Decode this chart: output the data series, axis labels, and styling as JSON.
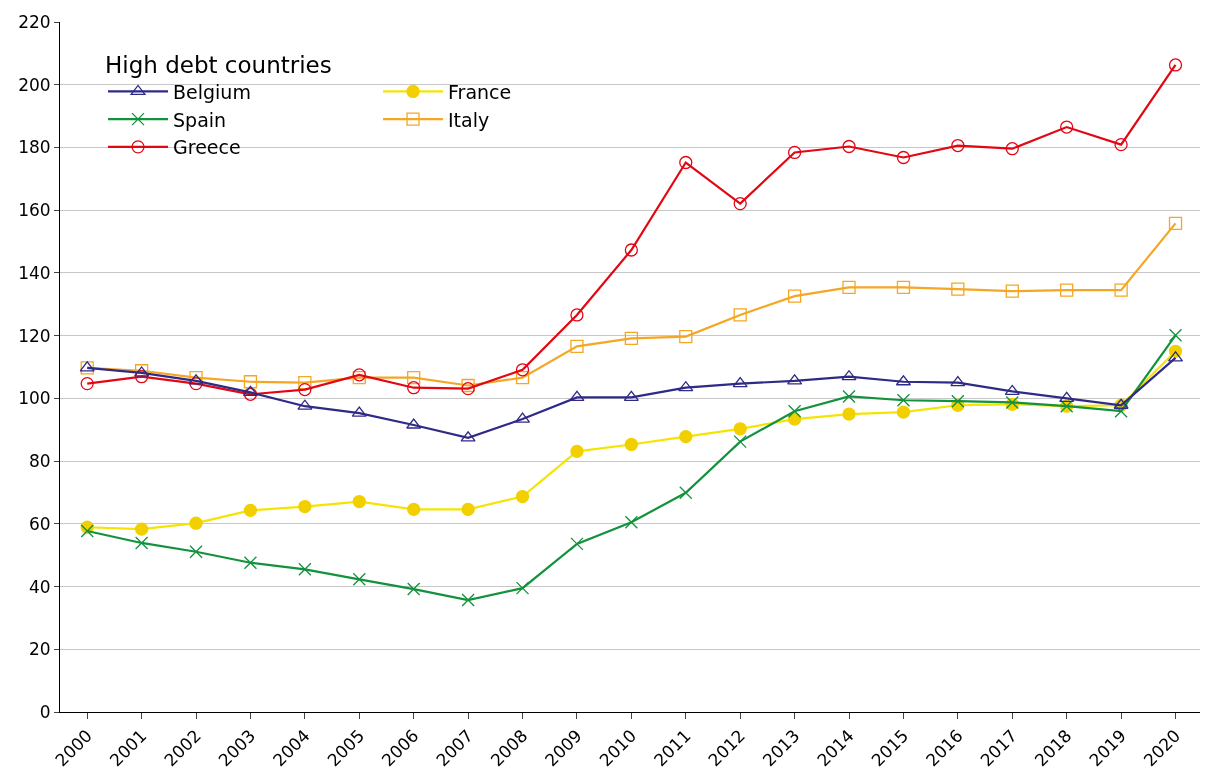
{
  "chart_data": {
    "type": "line",
    "legend_title": "High debt countries",
    "legend": "top left",
    "grid": "y",
    "ylim": [
      0,
      220
    ],
    "yticks": [
      0,
      20,
      40,
      60,
      80,
      100,
      120,
      140,
      160,
      180,
      200,
      220
    ],
    "categories": [
      "2000",
      "2001",
      "2002",
      "2003",
      "2004",
      "2005",
      "2006",
      "2007",
      "2008",
      "2009",
      "2010",
      "2011",
      "2012",
      "2013",
      "2014",
      "2015",
      "2016",
      "2017",
      "2018",
      "2019",
      "2020"
    ],
    "series": [
      {
        "name": "Belgium",
        "color": "#2e2a85",
        "marker": "triangle",
        "values": [
          109.7,
          108.1,
          105.6,
          101.9,
          97.5,
          95.3,
          91.5,
          87.4,
          93.4,
          100.3,
          100.3,
          103.4,
          104.7,
          105.6,
          106.9,
          105.3,
          105.0,
          102.2,
          100.0,
          97.8,
          112.9
        ]
      },
      {
        "name": "France",
        "color": "#f5e400",
        "marker": "circle",
        "values": [
          58.9,
          58.3,
          60.2,
          64.3,
          65.5,
          67.1,
          64.6,
          64.6,
          68.7,
          83.1,
          85.3,
          87.8,
          90.3,
          93.4,
          95.0,
          95.6,
          97.8,
          98.1,
          97.5,
          97.8,
          115.0
        ]
      },
      {
        "name": "Spain",
        "color": "#12923c",
        "marker": "cross",
        "values": [
          57.7,
          53.9,
          51.1,
          47.6,
          45.5,
          42.3,
          39.2,
          35.7,
          39.5,
          53.6,
          60.5,
          69.9,
          86.2,
          95.9,
          100.6,
          99.4,
          99.1,
          98.7,
          97.5,
          95.9,
          120.1
        ]
      },
      {
        "name": "Italy",
        "color": "#f5a623",
        "marker": "square",
        "values": [
          109.7,
          108.8,
          106.6,
          105.3,
          105.0,
          106.6,
          106.6,
          104.1,
          106.6,
          116.6,
          119.1,
          119.7,
          126.6,
          132.6,
          135.4,
          135.4,
          134.8,
          134.2,
          134.5,
          134.5,
          155.8
        ]
      },
      {
        "name": "Greece",
        "color": "#e30613",
        "marker": "circle-open",
        "values": [
          104.7,
          106.9,
          104.7,
          101.3,
          102.8,
          107.5,
          103.4,
          103.1,
          109.1,
          126.6,
          147.3,
          175.2,
          162.1,
          178.4,
          180.3,
          176.8,
          180.6,
          179.6,
          186.5,
          180.9,
          206.3
        ]
      }
    ]
  }
}
